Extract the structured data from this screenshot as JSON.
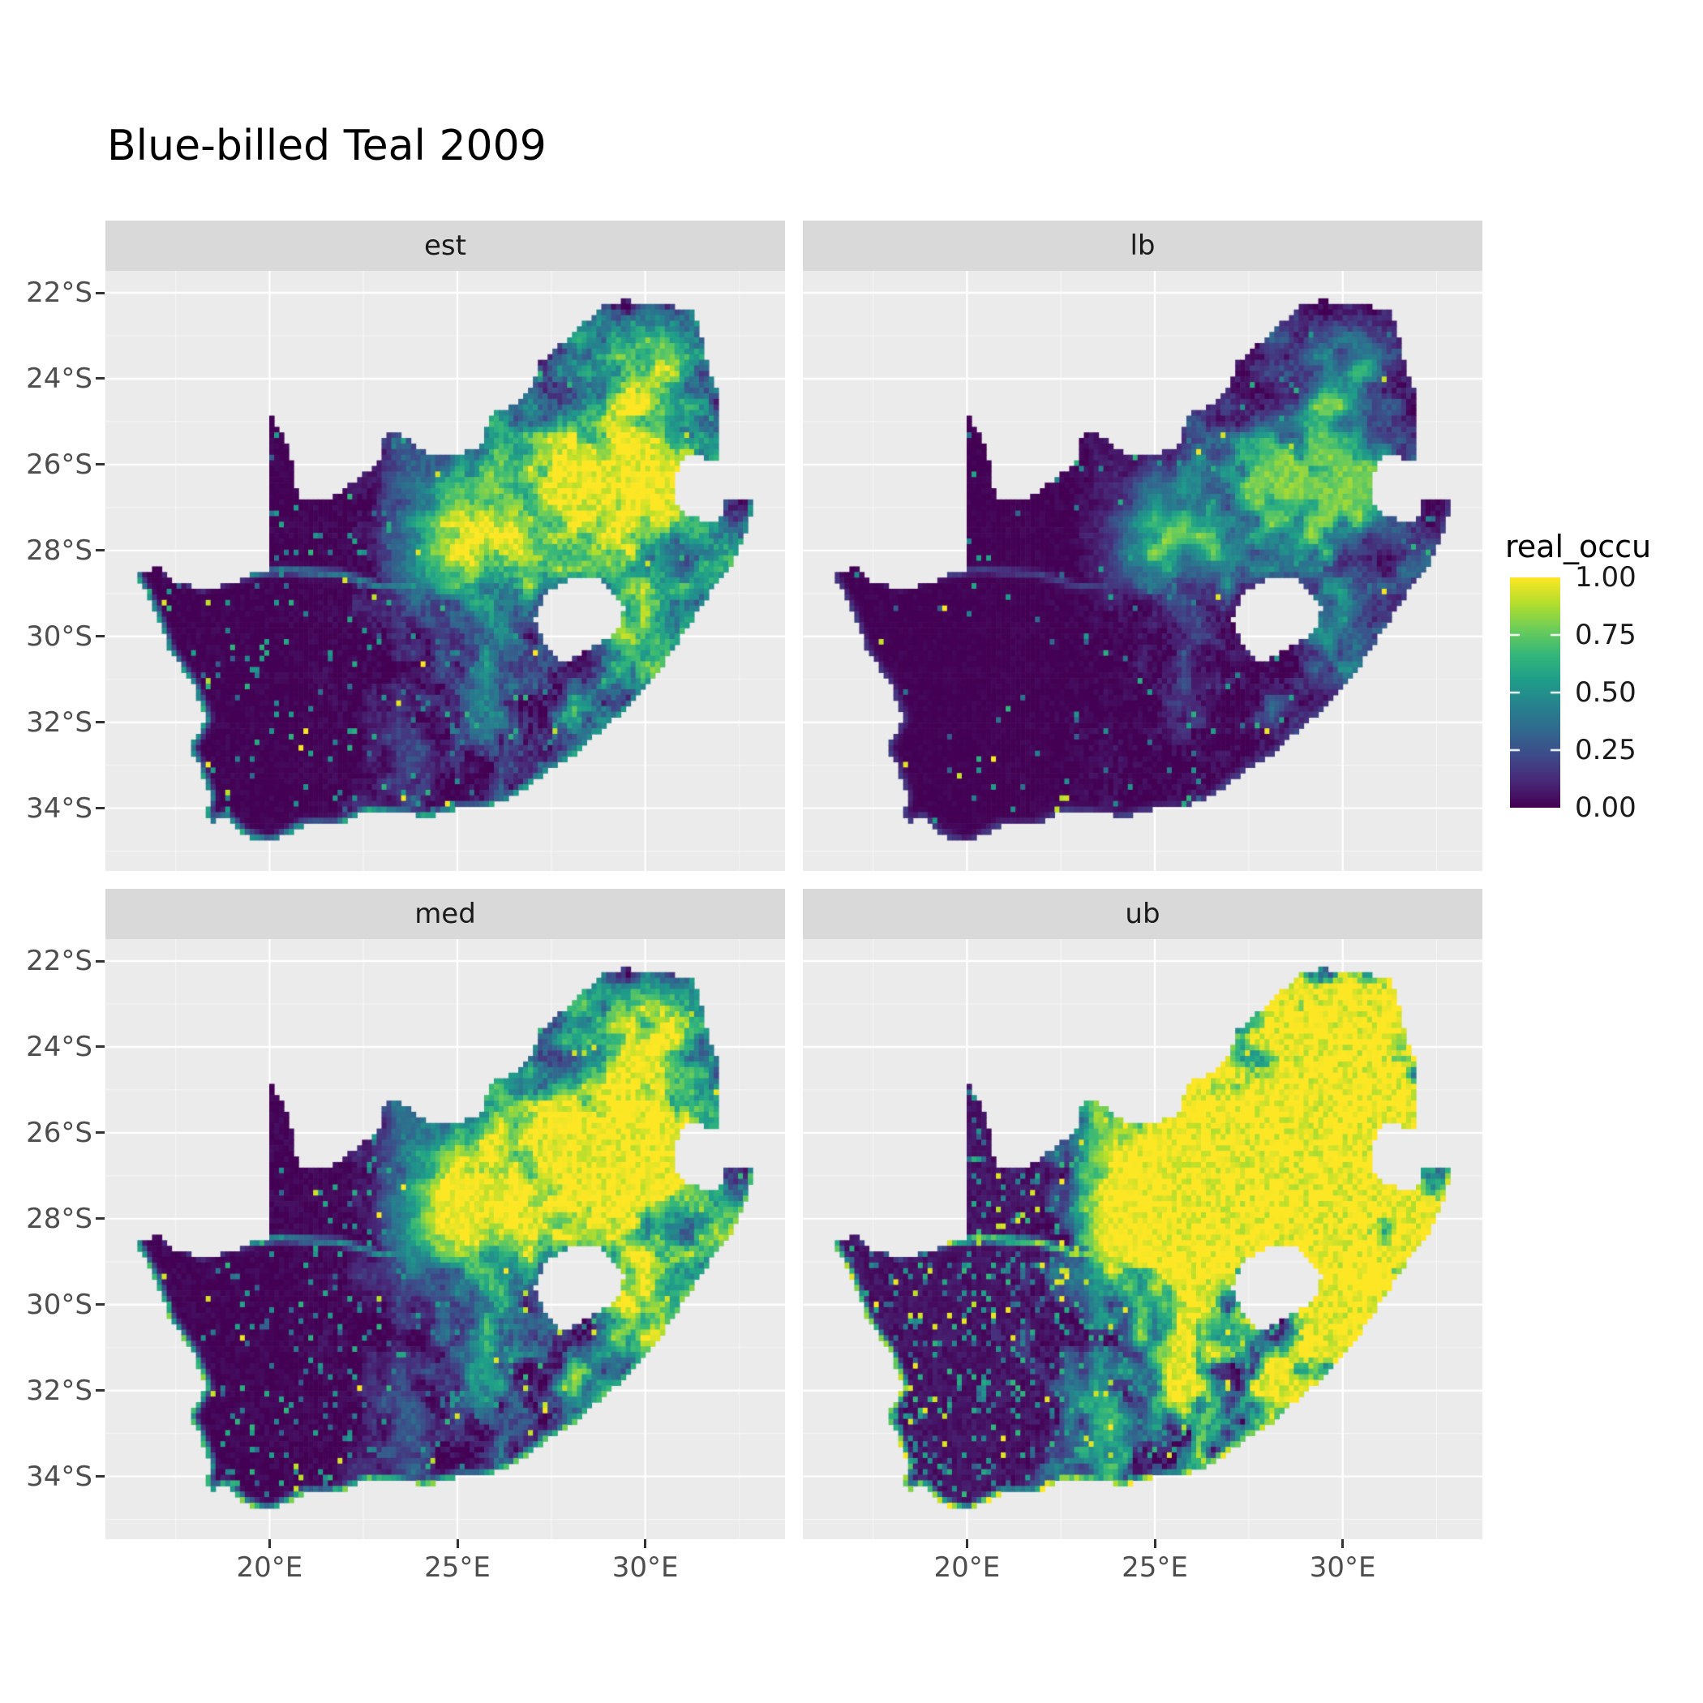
{
  "title": "Blue-billed Teal 2009",
  "facets": [
    {
      "label": "est"
    },
    {
      "label": "lb"
    },
    {
      "label": "med"
    },
    {
      "label": "ub"
    }
  ],
  "colors": {
    "background": "#FFFFFF",
    "panel_bg": "#EBEBEB",
    "strip_bg": "#D9D9D9",
    "grid_major": "#FFFFFF",
    "grid_minor": "#FFFFFF",
    "axis_text": "#4D4D4D",
    "tick_mark": "#333333",
    "title_text": "#000000"
  },
  "chart_data": {
    "type": "heatmap",
    "subtype": "faceted_raster_occupancy_map",
    "title": "Blue-billed Teal 2009",
    "region": "South Africa",
    "facets": [
      "est",
      "lb",
      "med",
      "ub"
    ],
    "value_variable": "real_occu",
    "value_range": [
      0,
      1
    ],
    "grid": true,
    "x_axis": {
      "label": "",
      "ticks": [
        "20°E",
        "25°E",
        "30°E"
      ],
      "tick_values": [
        20,
        25,
        30
      ],
      "minor_values": [
        17.5,
        22.5,
        27.5,
        32.5
      ],
      "range": [
        15.63,
        33.72
      ]
    },
    "y_axis": {
      "label": "",
      "ticks": [
        "22°S",
        "24°S",
        "26°S",
        "28°S",
        "30°S",
        "32°S",
        "34°S"
      ],
      "tick_values": [
        -22,
        -24,
        -26,
        -28,
        -30,
        -32,
        -34
      ],
      "minor_values": [
        -23,
        -25,
        -27,
        -29,
        -31,
        -33,
        -35
      ],
      "range": [
        -35.46,
        -21.49
      ]
    },
    "legend": {
      "title": "real_occu",
      "position": "right",
      "tick_labels": [
        "1.00",
        "0.75",
        "0.50",
        "0.25",
        "0.00"
      ],
      "tick_values": [
        1,
        0.75,
        0.5,
        0.25,
        0
      ]
    },
    "colormap": {
      "name": "viridis",
      "stops": [
        "#440154",
        "#482878",
        "#3E4A89",
        "#31688E",
        "#26828E",
        "#1F9E89",
        "#35B779",
        "#6DCD59",
        "#B4DE2C",
        "#FDE725"
      ]
    },
    "summary": {
      "est": "estimated occupancy: high (yellow) core over the north-eastern highveld around 26-30E / 25-28S, teal-green speckle over the eastern half, near-zero (dark purple) over the arid west, thin green fringe along the south and west coasts",
      "lb": "lower bound: almost everywhere near zero; green speckle restricted to the north-eastern core with rare isolated yellow cells",
      "med": "median: like est but slightly brighter; solid yellow-green core in the north-east and brighter coastal fringe",
      "ub": "upper bound: broad saturated yellow across the north-east and east, bright yellow ring along the entire coastline and along the Orange River, dense green speckle inland"
    },
    "raster_cell_deg": 0.13,
    "map_outline_lonlat": [
      [
        16.45,
        -28.58
      ],
      [
        17.05,
        -28.35
      ],
      [
        17.45,
        -28.7
      ],
      [
        18.0,
        -28.87
      ],
      [
        18.6,
        -28.84
      ],
      [
        19.2,
        -28.73
      ],
      [
        19.6,
        -28.5
      ],
      [
        19.99,
        -28.45
      ],
      [
        19.99,
        -27.5
      ],
      [
        19.99,
        -26.5
      ],
      [
        19.99,
        -25.5
      ],
      [
        19.99,
        -24.77
      ],
      [
        20.35,
        -25.3
      ],
      [
        20.6,
        -25.9
      ],
      [
        20.65,
        -26.4
      ],
      [
        20.85,
        -26.8
      ],
      [
        21.6,
        -26.85
      ],
      [
        22.2,
        -26.4
      ],
      [
        22.9,
        -26.0
      ],
      [
        23.0,
        -25.32
      ],
      [
        23.5,
        -25.3
      ],
      [
        24.2,
        -25.75
      ],
      [
        25.0,
        -25.77
      ],
      [
        25.6,
        -25.6
      ],
      [
        25.9,
        -24.8
      ],
      [
        26.5,
        -24.63
      ],
      [
        26.9,
        -24.3
      ],
      [
        27.2,
        -23.6
      ],
      [
        27.7,
        -23.22
      ],
      [
        28.2,
        -22.85
      ],
      [
        28.85,
        -22.3
      ],
      [
        29.4,
        -22.17
      ],
      [
        30.0,
        -22.25
      ],
      [
        30.6,
        -22.3
      ],
      [
        31.3,
        -22.4
      ],
      [
        31.55,
        -23.2
      ],
      [
        31.7,
        -23.9
      ],
      [
        31.95,
        -24.4
      ],
      [
        31.98,
        -25.2
      ],
      [
        31.95,
        -25.96
      ],
      [
        31.3,
        -25.72
      ],
      [
        30.95,
        -25.85
      ],
      [
        30.8,
        -26.3
      ],
      [
        30.82,
        -26.85
      ],
      [
        31.1,
        -27.2
      ],
      [
        31.6,
        -27.32
      ],
      [
        31.97,
        -27.3
      ],
      [
        32.13,
        -26.86
      ],
      [
        32.89,
        -26.86
      ],
      [
        32.65,
        -27.65
      ],
      [
        32.25,
        -28.35
      ],
      [
        31.75,
        -28.95
      ],
      [
        31.05,
        -29.88
      ],
      [
        30.4,
        -30.75
      ],
      [
        29.65,
        -31.55
      ],
      [
        28.85,
        -32.15
      ],
      [
        28.1,
        -32.75
      ],
      [
        27.35,
        -33.15
      ],
      [
        26.45,
        -33.75
      ],
      [
        25.65,
        -34.0
      ],
      [
        25.0,
        -34.02
      ],
      [
        24.2,
        -34.2
      ],
      [
        23.4,
        -34.1
      ],
      [
        22.6,
        -34.05
      ],
      [
        21.8,
        -34.4
      ],
      [
        20.9,
        -34.4
      ],
      [
        20.0,
        -34.82
      ],
      [
        19.35,
        -34.62
      ],
      [
        18.82,
        -34.2
      ],
      [
        18.47,
        -34.35
      ],
      [
        18.33,
        -34.1
      ],
      [
        18.43,
        -33.72
      ],
      [
        18.15,
        -33.05
      ],
      [
        17.88,
        -32.6
      ],
      [
        18.33,
        -31.9
      ],
      [
        17.95,
        -31.1
      ],
      [
        17.35,
        -30.35
      ],
      [
        16.95,
        -29.4
      ]
    ],
    "coast_start_index": 48,
    "lesotho_hole_lonlat": [
      [
        27.05,
        -29.65
      ],
      [
        27.35,
        -28.95
      ],
      [
        28.0,
        -28.68
      ],
      [
        28.65,
        -28.6
      ],
      [
        29.15,
        -28.95
      ],
      [
        29.45,
        -29.35
      ],
      [
        29.2,
        -29.95
      ],
      [
        28.45,
        -30.35
      ],
      [
        27.75,
        -30.6
      ],
      [
        27.3,
        -30.2
      ]
    ],
    "rivers_lonlat": [
      [
        [
          26.8,
          -30.2
        ],
        [
          25.7,
          -29.6
        ],
        [
          24.6,
          -28.75
        ],
        [
          23.0,
          -28.85
        ],
        [
          21.9,
          -28.55
        ],
        [
          20.3,
          -28.45
        ],
        [
          19.2,
          -28.6
        ],
        [
          18.2,
          -28.85
        ],
        [
          17.3,
          -28.5
        ]
      ],
      [
        [
          29.3,
          -26.4
        ],
        [
          28.3,
          -26.8
        ],
        [
          27.2,
          -26.9
        ],
        [
          26.3,
          -27.5
        ],
        [
          25.4,
          -28.2
        ],
        [
          24.6,
          -28.75
        ]
      ]
    ],
    "facet_params": {
      "est": {
        "seed": 1,
        "offset": 0.0,
        "gain": 1.05,
        "gamma": 1.0,
        "jitter": 0.22,
        "coast": 0.62,
        "river": 0.5,
        "speck_hi": 0.004,
        "speck_med": 0.045
      },
      "lb": {
        "seed": 2,
        "offset": 0.0,
        "gain": 0.8,
        "gamma": 1.9,
        "jitter": 0.14,
        "coast": 0.2,
        "river": 0.22,
        "speck_hi": 0.003,
        "speck_med": 0.02
      },
      "med": {
        "seed": 3,
        "offset": 0.01,
        "gain": 1.25,
        "gamma": 0.95,
        "jitter": 0.22,
        "coast": 0.8,
        "river": 0.55,
        "speck_hi": 0.006,
        "speck_med": 0.055
      },
      "ub": {
        "seed": 4,
        "offset": 0.05,
        "gain": 2.0,
        "gamma": 0.75,
        "jitter": 0.26,
        "coast": 1.0,
        "river": 0.95,
        "speck_hi": 0.02,
        "speck_med": 0.12
      }
    }
  }
}
